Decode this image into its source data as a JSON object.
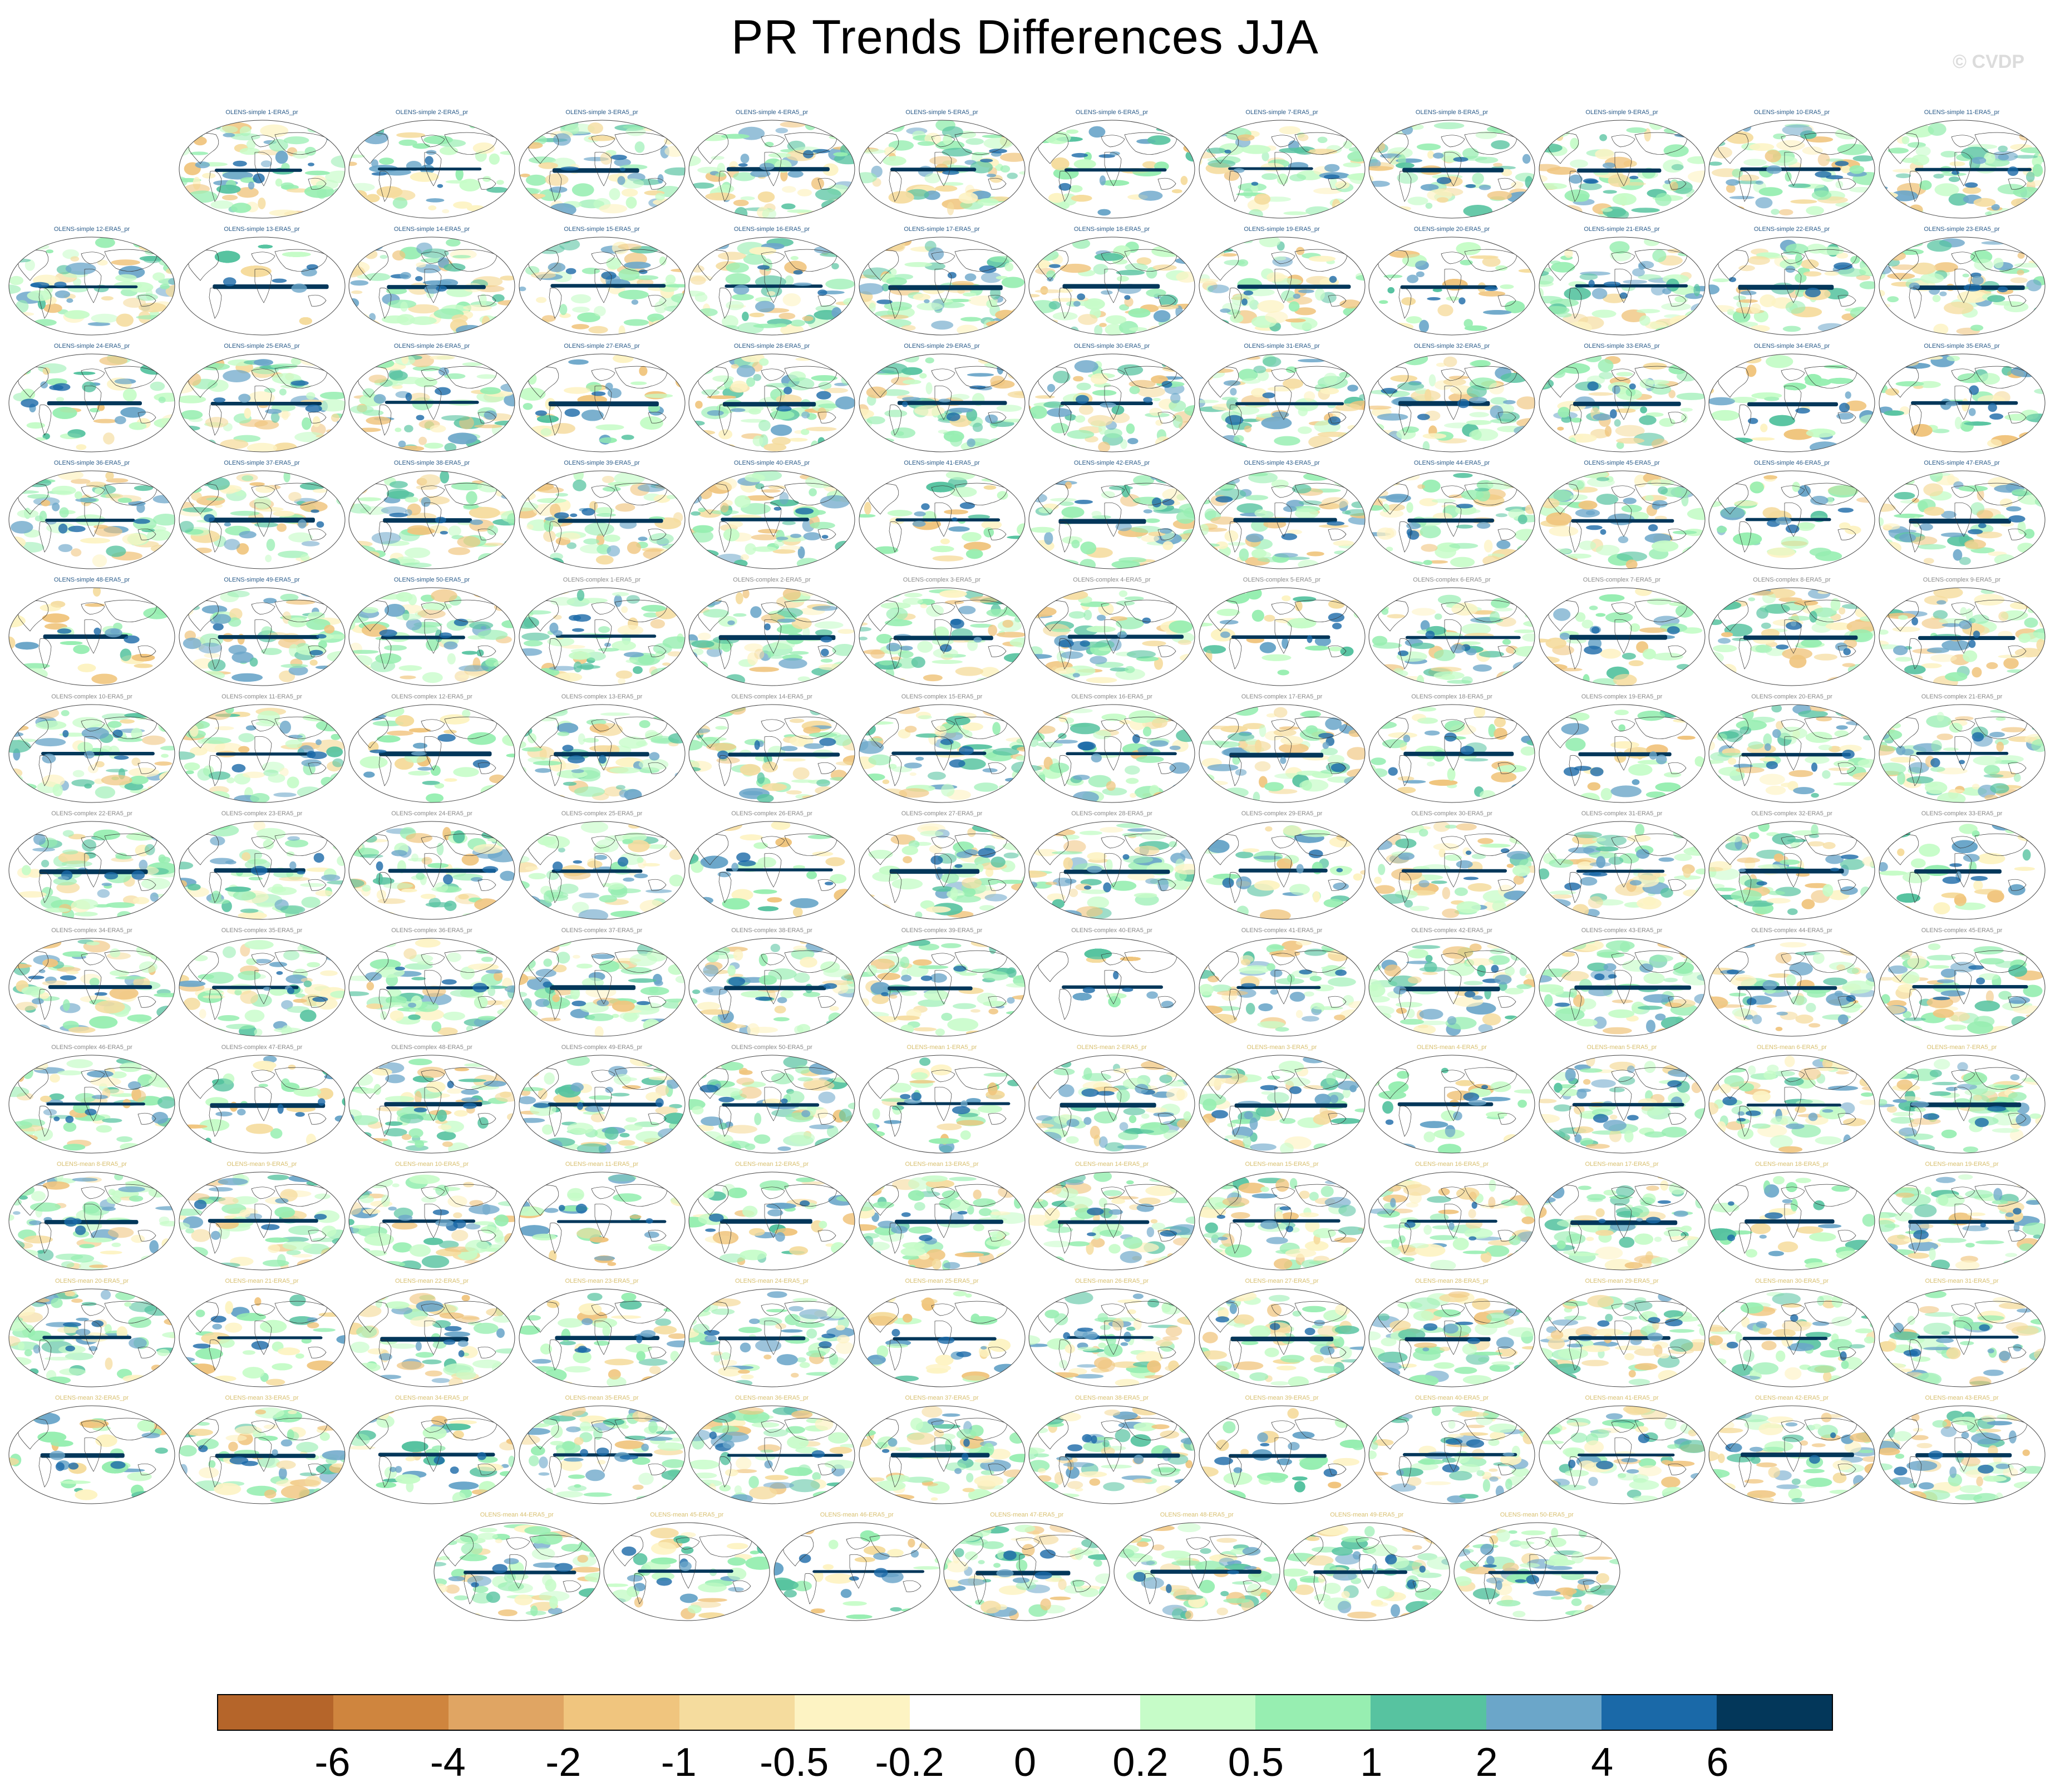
{
  "title": "PR Trends Differences JJA",
  "watermark": "© CVDP",
  "panel_labels": [
    "OLENS-simple 1-ERA5_pr",
    "OLENS-simple 2-ERA5_pr",
    "OLENS-simple 3-ERA5_pr",
    "OLENS-simple 4-ERA5_pr",
    "OLENS-simple 5-ERA5_pr",
    "OLENS-simple 6-ERA5_pr",
    "OLENS-simple 7-ERA5_pr",
    "OLENS-simple 8-ERA5_pr",
    "OLENS-simple 9-ERA5_pr",
    "OLENS-simple 10-ERA5_pr",
    "OLENS-simple 11-ERA5_pr",
    "OLENS-simple 12-ERA5_pr",
    "OLENS-simple 13-ERA5_pr",
    "OLENS-simple 14-ERA5_pr",
    "OLENS-simple 15-ERA5_pr",
    "OLENS-simple 16-ERA5_pr",
    "OLENS-simple 17-ERA5_pr",
    "OLENS-simple 18-ERA5_pr",
    "OLENS-simple 19-ERA5_pr",
    "OLENS-simple 20-ERA5_pr",
    "OLENS-simple 21-ERA5_pr",
    "OLENS-simple 22-ERA5_pr",
    "OLENS-simple 23-ERA5_pr",
    "OLENS-simple 24-ERA5_pr",
    "OLENS-simple 25-ERA5_pr",
    "OLENS-simple 26-ERA5_pr",
    "OLENS-simple 27-ERA5_pr",
    "OLENS-simple 28-ERA5_pr",
    "OLENS-simple 29-ERA5_pr",
    "OLENS-simple 30-ERA5_pr",
    "OLENS-simple 31-ERA5_pr",
    "OLENS-simple 32-ERA5_pr",
    "OLENS-simple 33-ERA5_pr",
    "OLENS-simple 34-ERA5_pr",
    "OLENS-simple 35-ERA5_pr",
    "OLENS-simple 36-ERA5_pr",
    "OLENS-simple 37-ERA5_pr",
    "OLENS-simple 38-ERA5_pr",
    "OLENS-simple 39-ERA5_pr",
    "OLENS-simple 40-ERA5_pr",
    "OLENS-simple 41-ERA5_pr",
    "OLENS-simple 42-ERA5_pr",
    "OLENS-simple 43-ERA5_pr",
    "OLENS-simple 44-ERA5_pr",
    "OLENS-simple 45-ERA5_pr",
    "OLENS-simple 46-ERA5_pr",
    "OLENS-simple 47-ERA5_pr",
    "OLENS-simple 48-ERA5_pr",
    "OLENS-simple 49-ERA5_pr",
    "OLENS-simple 50-ERA5_pr",
    "OLENS-complex 1-ERA5_pr",
    "OLENS-complex 2-ERA5_pr",
    "OLENS-complex 3-ERA5_pr",
    "OLENS-complex 4-ERA5_pr",
    "OLENS-complex 5-ERA5_pr",
    "OLENS-complex 6-ERA5_pr",
    "OLENS-complex 7-ERA5_pr",
    "OLENS-complex 8-ERA5_pr",
    "OLENS-complex 9-ERA5_pr",
    "OLENS-complex 10-ERA5_pr",
    "OLENS-complex 11-ERA5_pr",
    "OLENS-complex 12-ERA5_pr",
    "OLENS-complex 13-ERA5_pr",
    "OLENS-complex 14-ERA5_pr",
    "OLENS-complex 15-ERA5_pr",
    "OLENS-complex 16-ERA5_pr",
    "OLENS-complex 17-ERA5_pr",
    "OLENS-complex 18-ERA5_pr",
    "OLENS-complex 19-ERA5_pr",
    "OLENS-complex 20-ERA5_pr",
    "OLENS-complex 21-ERA5_pr",
    "OLENS-complex 22-ERA5_pr",
    "OLENS-complex 23-ERA5_pr",
    "OLENS-complex 24-ERA5_pr",
    "OLENS-complex 25-ERA5_pr",
    "OLENS-complex 26-ERA5_pr",
    "OLENS-complex 27-ERA5_pr",
    "OLENS-complex 28-ERA5_pr",
    "OLENS-complex 29-ERA5_pr",
    "OLENS-complex 30-ERA5_pr",
    "OLENS-complex 31-ERA5_pr",
    "OLENS-complex 32-ERA5_pr",
    "OLENS-complex 33-ERA5_pr",
    "OLENS-complex 34-ERA5_pr",
    "OLENS-complex 35-ERA5_pr",
    "OLENS-complex 36-ERA5_pr",
    "OLENS-complex 37-ERA5_pr",
    "OLENS-complex 38-ERA5_pr",
    "OLENS-complex 39-ERA5_pr",
    "OLENS-complex 40-ERA5_pr",
    "OLENS-complex 41-ERA5_pr",
    "OLENS-complex 42-ERA5_pr",
    "OLENS-complex 43-ERA5_pr",
    "OLENS-complex 44-ERA5_pr",
    "OLENS-complex 45-ERA5_pr",
    "OLENS-complex 46-ERA5_pr",
    "OLENS-complex 47-ERA5_pr",
    "OLENS-complex 48-ERA5_pr",
    "OLENS-complex 49-ERA5_pr",
    "OLENS-complex 50-ERA5_pr",
    "OLENS-mean 1-ERA5_pr",
    "OLENS-mean 2-ERA5_pr",
    "OLENS-mean 3-ERA5_pr",
    "OLENS-mean 4-ERA5_pr",
    "OLENS-mean 5-ERA5_pr",
    "OLENS-mean 6-ERA5_pr",
    "OLENS-mean 7-ERA5_pr",
    "OLENS-mean 8-ERA5_pr",
    "OLENS-mean 9-ERA5_pr",
    "OLENS-mean 10-ERA5_pr",
    "OLENS-mean 11-ERA5_pr",
    "OLENS-mean 12-ERA5_pr",
    "OLENS-mean 13-ERA5_pr",
    "OLENS-mean 14-ERA5_pr",
    "OLENS-mean 15-ERA5_pr",
    "OLENS-mean 16-ERA5_pr",
    "OLENS-mean 17-ERA5_pr",
    "OLENS-mean 18-ERA5_pr",
    "OLENS-mean 19-ERA5_pr",
    "OLENS-mean 20-ERA5_pr",
    "OLENS-mean 21-ERA5_pr",
    "OLENS-mean 22-ERA5_pr",
    "OLENS-mean 23-ERA5_pr",
    "OLENS-mean 24-ERA5_pr",
    "OLENS-mean 25-ERA5_pr",
    "OLENS-mean 26-ERA5_pr",
    "OLENS-mean 27-ERA5_pr",
    "OLENS-mean 28-ERA5_pr",
    "OLENS-mean 29-ERA5_pr",
    "OLENS-mean 30-ERA5_pr",
    "OLENS-mean 31-ERA5_pr",
    "OLENS-mean 32-ERA5_pr",
    "OLENS-mean 33-ERA5_pr",
    "OLENS-mean 34-ERA5_pr",
    "OLENS-mean 35-ERA5_pr",
    "OLENS-mean 36-ERA5_pr",
    "OLENS-mean 37-ERA5_pr",
    "OLENS-mean 38-ERA5_pr",
    "OLENS-mean 39-ERA5_pr",
    "OLENS-mean 40-ERA5_pr",
    "OLENS-mean 41-ERA5_pr",
    "OLENS-mean 42-ERA5_pr",
    "OLENS-mean 43-ERA5_pr",
    "OLENS-mean 44-ERA5_pr",
    "OLENS-mean 45-ERA5_pr",
    "OLENS-mean 46-ERA5_pr",
    "OLENS-mean 47-ERA5_pr",
    "OLENS-mean 48-ERA5_pr",
    "OLENS-mean 49-ERA5_pr",
    "OLENS-mean 50-ERA5_pr"
  ],
  "colorbar": {
    "colors": [
      "#b5652a",
      "#cf853e",
      "#e0a563",
      "#f0c57e",
      "#f5dc9e",
      "#fdf3c3",
      "#ffffff",
      "#ffffff",
      "#c6fcc8",
      "#97eeb1",
      "#57c3a0",
      "#6ba6c9",
      "#1a69a8",
      "#03375a"
    ],
    "labels": [
      "-6",
      "-4",
      "-2",
      "-1",
      "-0.5",
      "-0.2",
      "0",
      "0.2",
      "0.5",
      "1",
      "2",
      "4",
      "6"
    ]
  }
}
